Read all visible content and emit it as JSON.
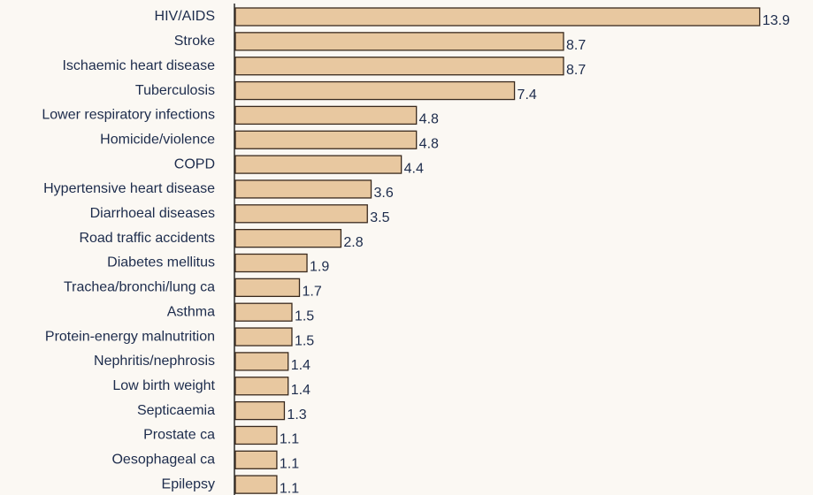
{
  "chart_data": {
    "type": "bar",
    "orientation": "horizontal",
    "categories": [
      "HIV/AIDS",
      "Stroke",
      "Ischaemic heart disease",
      "Tuberculosis",
      "Lower respiratory infections",
      "Homicide/violence",
      "COPD",
      "Hypertensive heart disease",
      "Diarrhoeal diseases",
      "Road traffic accidents",
      "Diabetes mellitus",
      "Trachea/bronchi/lung ca",
      "Asthma",
      "Protein-energy malnutrition",
      "Nephritis/nephrosis",
      "Low birth weight",
      "Septicaemia",
      "Prostate ca",
      "Oesophageal ca",
      "Epilepsy"
    ],
    "values": [
      13.9,
      8.7,
      8.7,
      7.4,
      4.8,
      4.8,
      4.4,
      3.6,
      3.5,
      2.8,
      1.9,
      1.7,
      1.5,
      1.5,
      1.4,
      1.4,
      1.3,
      1.1,
      1.1,
      1.1
    ],
    "color": "#e8c8a0",
    "xlim": [
      0,
      14
    ]
  }
}
